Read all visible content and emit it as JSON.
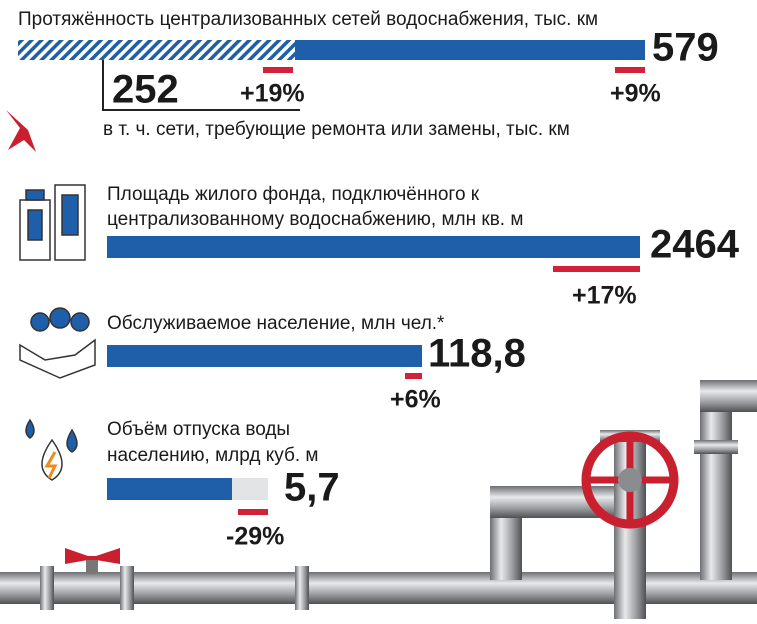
{
  "items": [
    {
      "title": "Протяжённость централизованных сетей водоснабжения, тыс. км",
      "value": "579",
      "change": "+9%",
      "sub_value": "252",
      "sub_change": "+19%",
      "sub_title": "в т. ч. сети, требующие ремонта или замены, тыс. км"
    },
    {
      "title_lines": [
        "Площадь жилого фонда, подключённого к",
        "централизованному водоснабжению, млн кв. м"
      ],
      "value": "2464",
      "change": "+17%"
    },
    {
      "title": "Обслуживаемое население, млн чел.*",
      "value": "118,8",
      "change": "+6%"
    },
    {
      "title_lines": [
        "Объём отпуска воды",
        "населению, млрд куб. м"
      ],
      "value": "5,7",
      "change": "-29%"
    }
  ]
}
